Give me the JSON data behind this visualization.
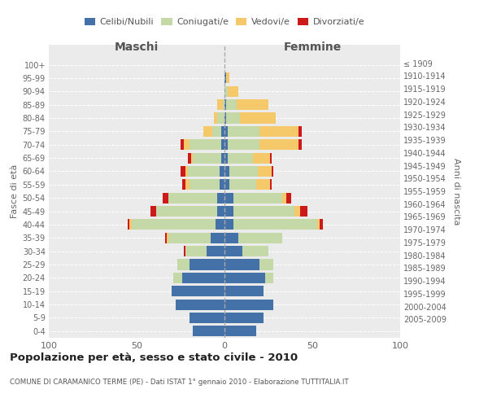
{
  "age_groups": [
    "0-4",
    "5-9",
    "10-14",
    "15-19",
    "20-24",
    "25-29",
    "30-34",
    "35-39",
    "40-44",
    "45-49",
    "50-54",
    "55-59",
    "60-64",
    "65-69",
    "70-74",
    "75-79",
    "80-84",
    "85-89",
    "90-94",
    "95-99",
    "100+"
  ],
  "birth_years": [
    "2005-2009",
    "2000-2004",
    "1995-1999",
    "1990-1994",
    "1985-1989",
    "1980-1984",
    "1975-1979",
    "1970-1974",
    "1965-1969",
    "1960-1964",
    "1955-1959",
    "1950-1954",
    "1945-1949",
    "1940-1944",
    "1935-1939",
    "1930-1934",
    "1925-1929",
    "1920-1924",
    "1915-1919",
    "1910-1914",
    "≤ 1909"
  ],
  "male_celibe": [
    18,
    20,
    28,
    30,
    24,
    20,
    10,
    8,
    5,
    4,
    4,
    3,
    3,
    2,
    2,
    2,
    0,
    0,
    0,
    0,
    0
  ],
  "male_coniugato": [
    0,
    0,
    0,
    0,
    5,
    7,
    12,
    24,
    48,
    35,
    28,
    17,
    18,
    16,
    18,
    5,
    4,
    1,
    0,
    0,
    0
  ],
  "male_vedovo": [
    0,
    0,
    0,
    0,
    0,
    0,
    0,
    1,
    1,
    0,
    0,
    2,
    1,
    1,
    3,
    5,
    2,
    3,
    0,
    0,
    0
  ],
  "male_divorziato": [
    0,
    0,
    0,
    0,
    0,
    0,
    1,
    1,
    1,
    3,
    3,
    2,
    3,
    2,
    2,
    0,
    0,
    0,
    0,
    0,
    0
  ],
  "female_celibe": [
    18,
    22,
    28,
    22,
    23,
    20,
    10,
    8,
    5,
    5,
    5,
    3,
    3,
    2,
    2,
    2,
    1,
    1,
    0,
    1,
    0
  ],
  "female_coniugata": [
    0,
    0,
    0,
    0,
    5,
    8,
    15,
    25,
    48,
    35,
    28,
    15,
    16,
    14,
    18,
    18,
    8,
    6,
    2,
    0,
    0
  ],
  "female_vedova": [
    0,
    0,
    0,
    0,
    0,
    0,
    0,
    0,
    1,
    3,
    2,
    8,
    8,
    10,
    22,
    22,
    20,
    18,
    6,
    2,
    0
  ],
  "female_divorziata": [
    0,
    0,
    0,
    0,
    0,
    0,
    0,
    0,
    2,
    4,
    3,
    1,
    1,
    1,
    2,
    2,
    0,
    0,
    0,
    0,
    0
  ],
  "color_celibe": "#4472a8",
  "color_coniugato": "#c5d9a8",
  "color_vedovo": "#f5c96a",
  "color_divorziato": "#cc1a1a",
  "title": "Popolazione per età, sesso e stato civile - 2010",
  "subtitle": "COMUNE DI CARAMANICO TERME (PE) - Dati ISTAT 1° gennaio 2010 - Elaborazione TUTTITALIA.IT",
  "xlabel_left": "Maschi",
  "xlabel_right": "Femmine",
  "ylabel_left": "Fasce di età",
  "ylabel_right": "Anni di nascita",
  "legend_labels": [
    "Celibi/Nubili",
    "Coniugati/e",
    "Vedovi/e",
    "Divorziati/e"
  ],
  "xlim": 100,
  "bg_color": "#ffffff",
  "plot_bg_color": "#ebebeb",
  "grid_color": "#ffffff"
}
